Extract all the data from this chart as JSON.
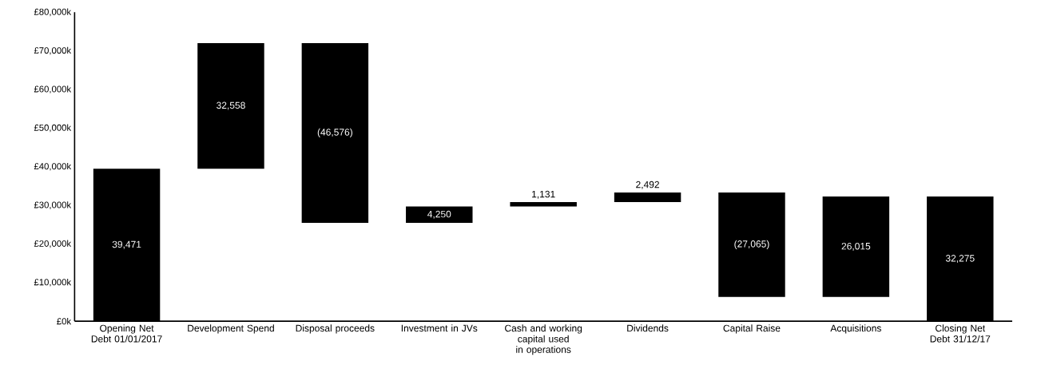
{
  "chart_data": {
    "type": "bar",
    "categories": [
      "Opening Net Debt 01/01/2017",
      "Development Spend",
      "Disposal proceeds",
      "Investment in JVs",
      "Cash and working capital used in operations",
      "Dividends",
      "Capital Raise",
      "Acquisitions",
      "Closing Net Debt 31/12/17"
    ],
    "values": [
      39471,
      32558,
      -46576,
      4250,
      1131,
      2492,
      -27065,
      26015,
      32275
    ],
    "base": [
      0,
      39471,
      72029,
      25453,
      29703,
      30834,
      33326,
      6261,
      0
    ],
    "value_labels": [
      "39,471",
      "32,558",
      "(46,576)",
      "4,250",
      "1,131",
      "2,492",
      "(27,065)",
      "26,015",
      "32,275"
    ],
    "color": "#000000",
    "ylim": [
      0,
      80000
    ],
    "yticks": [
      {
        "value": 0,
        "label": "£0k"
      },
      {
        "value": 10000,
        "label": "£10,000k"
      },
      {
        "value": 20000,
        "label": "£20,000k"
      },
      {
        "value": 30000,
        "label": "£30,000k"
      },
      {
        "value": 40000,
        "label": "£40,000k"
      },
      {
        "value": 50000,
        "label": "£50,000k"
      },
      {
        "value": 60000,
        "label": "£60,000k"
      },
      {
        "value": 70000,
        "label": "£70,000k"
      },
      {
        "value": 80000,
        "label": "£80,000k"
      }
    ],
    "grid": false
  }
}
